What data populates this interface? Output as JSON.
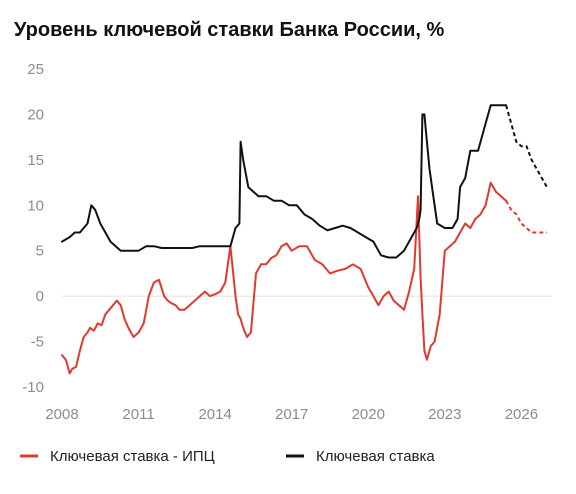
{
  "chart_data": {
    "type": "line",
    "title": "Уровень ключевой ставки Банка России, %",
    "xlabel": "",
    "ylabel": "",
    "xlim": [
      2008,
      2027.2
    ],
    "ylim": [
      -10,
      25
    ],
    "x_ticks": [
      2008,
      2011,
      2014,
      2017,
      2020,
      2023,
      2026
    ],
    "x_tick_labels": [
      "2008",
      "2011",
      "2014",
      "2017",
      "2020",
      "2023",
      "2026"
    ],
    "y_ticks": [
      25,
      20,
      15,
      10,
      5,
      0,
      -5,
      -10
    ],
    "y_tick_labels": [
      "25",
      "20",
      "15",
      "10",
      "5",
      "0",
      "-5",
      "-10"
    ],
    "grid": false,
    "zero_line": true,
    "legend_position": "bottom",
    "series": [
      {
        "name": "Ключевая ставка - ИПЦ",
        "color": "#e03a2f",
        "x": [
          2008.0,
          2008.15,
          2008.3,
          2008.4,
          2008.55,
          2008.7,
          2008.85,
          2009.0,
          2009.1,
          2009.25,
          2009.4,
          2009.55,
          2009.7,
          2009.85,
          2010.0,
          2010.15,
          2010.3,
          2010.45,
          2010.6,
          2010.8,
          2011.0,
          2011.2,
          2011.4,
          2011.6,
          2011.8,
          2012.0,
          2012.15,
          2012.3,
          2012.45,
          2012.6,
          2012.8,
          2013.0,
          2013.2,
          2013.4,
          2013.6,
          2013.8,
          2014.0,
          2014.2,
          2014.4,
          2014.6,
          2014.8,
          2014.9,
          2015.0,
          2015.1,
          2015.25,
          2015.4,
          2015.6,
          2015.8,
          2016.0,
          2016.2,
          2016.4,
          2016.6,
          2016.8,
          2017.0,
          2017.3,
          2017.6,
          2017.9,
          2018.2,
          2018.5,
          2018.8,
          2019.1,
          2019.4,
          2019.7,
          2020.0,
          2020.2,
          2020.4,
          2020.6,
          2020.8,
          2021.0,
          2021.2,
          2021.4,
          2021.6,
          2021.8,
          2021.95,
          2022.05,
          2022.12,
          2022.2,
          2022.3,
          2022.45,
          2022.6,
          2022.8,
          2023.0,
          2023.2,
          2023.4,
          2023.6,
          2023.8,
          2024.0,
          2024.2,
          2024.4,
          2024.6,
          2024.8,
          2025.0,
          2025.2,
          2025.4
        ],
        "values": [
          -6.5,
          -7.0,
          -8.5,
          -8.0,
          -7.8,
          -6.0,
          -4.5,
          -4.0,
          -3.5,
          -3.8,
          -3.0,
          -3.2,
          -2.0,
          -1.5,
          -1.0,
          -0.5,
          -1.0,
          -2.5,
          -3.5,
          -4.5,
          -4.0,
          -3.0,
          0.0,
          1.5,
          1.8,
          0.0,
          -0.5,
          -0.8,
          -1.0,
          -1.5,
          -1.5,
          -1.0,
          -0.5,
          0.0,
          0.5,
          0.0,
          0.2,
          0.5,
          1.5,
          5.5,
          0.0,
          -2.0,
          -2.5,
          -3.5,
          -4.5,
          -4.0,
          2.5,
          3.5,
          3.5,
          4.2,
          4.5,
          5.5,
          5.8,
          5.0,
          5.5,
          5.5,
          4.0,
          3.5,
          2.5,
          2.8,
          3.0,
          3.5,
          3.0,
          1.0,
          0.0,
          -1.0,
          0.0,
          0.5,
          -0.5,
          -1.0,
          -1.5,
          0.5,
          3.0,
          11.0,
          2.0,
          -2.0,
          -6.0,
          -7.0,
          -5.5,
          -5.0,
          -2.0,
          5.0,
          5.5,
          6.0,
          7.0,
          8.0,
          7.5,
          8.5,
          9.0,
          10.0,
          12.5,
          11.5,
          11.0,
          10.5
        ]
      },
      {
        "name": "Ключевая ставка",
        "color": "#111111",
        "x": [
          2008.0,
          2008.3,
          2008.5,
          2008.7,
          2009.0,
          2009.15,
          2009.3,
          2009.5,
          2009.7,
          2009.9,
          2010.1,
          2010.3,
          2010.5,
          2010.7,
          2011.0,
          2011.3,
          2011.6,
          2011.9,
          2012.2,
          2012.5,
          2012.8,
          2013.1,
          2013.4,
          2013.7,
          2014.0,
          2014.2,
          2014.4,
          2014.6,
          2014.8,
          2014.95,
          2015.0,
          2015.1,
          2015.3,
          2015.5,
          2015.7,
          2016.0,
          2016.3,
          2016.6,
          2016.9,
          2017.2,
          2017.5,
          2017.8,
          2018.1,
          2018.4,
          2018.7,
          2019.0,
          2019.3,
          2019.6,
          2019.9,
          2020.2,
          2020.5,
          2020.8,
          2021.1,
          2021.4,
          2021.7,
          2021.9,
          2022.0,
          2022.05,
          2022.12,
          2022.2,
          2022.3,
          2022.4,
          2022.55,
          2022.7,
          2023.0,
          2023.3,
          2023.5,
          2023.6,
          2023.8,
          2024.0,
          2024.3,
          2024.5,
          2024.6,
          2024.8,
          2025.0,
          2025.2,
          2025.4
        ],
        "values": [
          6.0,
          6.5,
          7.0,
          7.0,
          8.0,
          10.0,
          9.5,
          8.0,
          7.0,
          6.0,
          5.5,
          5.0,
          5.0,
          5.0,
          5.0,
          5.5,
          5.5,
          5.3,
          5.3,
          5.3,
          5.3,
          5.3,
          5.5,
          5.5,
          5.5,
          5.5,
          5.5,
          5.5,
          7.5,
          8.0,
          17.0,
          15.0,
          12.0,
          11.5,
          11.0,
          11.0,
          10.5,
          10.5,
          10.0,
          10.0,
          9.0,
          8.5,
          7.75,
          7.25,
          7.5,
          7.75,
          7.5,
          7.0,
          6.5,
          6.0,
          4.5,
          4.25,
          4.25,
          5.0,
          6.5,
          7.5,
          8.5,
          9.5,
          20.0,
          20.0,
          17.0,
          14.0,
          11.0,
          8.0,
          7.5,
          7.5,
          8.5,
          12.0,
          13.0,
          16.0,
          16.0,
          18.0,
          19.0,
          21.0,
          21.0,
          21.0,
          21.0
        ]
      }
    ],
    "forecast": [
      {
        "series": "Ключевая ставка - ИПЦ",
        "x": [
          2025.4,
          2025.6,
          2025.8,
          2026.0,
          2026.2,
          2026.4,
          2026.6,
          2026.8,
          2027.0
        ],
        "values": [
          10.5,
          9.5,
          9.0,
          8.0,
          7.5,
          7.0,
          7.0,
          7.0,
          7.0
        ]
      },
      {
        "series": "Ключевая ставка",
        "x": [
          2025.4,
          2025.6,
          2025.8,
          2026.0,
          2026.2,
          2026.4,
          2026.6,
          2026.8,
          2027.0
        ],
        "values": [
          21.0,
          19.0,
          17.0,
          16.5,
          16.5,
          15.0,
          14.0,
          13.0,
          12.0
        ]
      }
    ]
  }
}
